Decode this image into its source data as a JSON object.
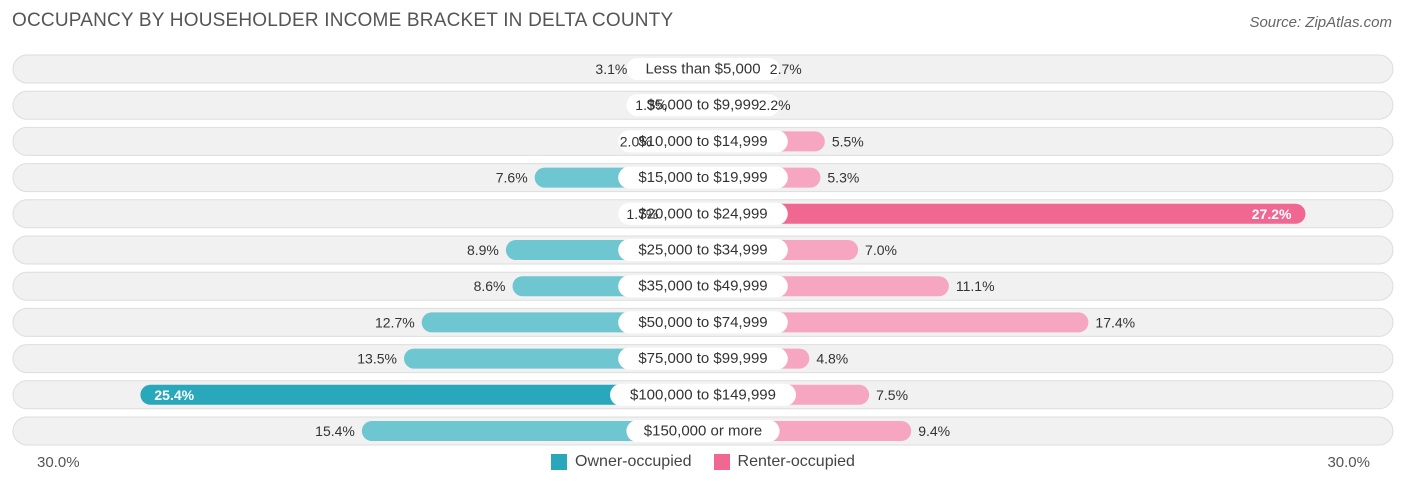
{
  "header": {
    "title": "OCCUPANCY BY HOUSEHOLDER INCOME BRACKET IN DELTA COUNTY",
    "source": "Source: ZipAtlas.com"
  },
  "axis": {
    "left_label": "30.0%",
    "right_label": "30.0%"
  },
  "legend": {
    "owner_label": "Owner-occupied",
    "renter_label": "Renter-occupied"
  },
  "colors": {
    "owner": "#6ec6d1",
    "owner_strong": "#29a8bb",
    "renter": "#f7a6c1",
    "renter_strong": "#f06792",
    "row_bg": "#f1f1f1",
    "row_border": "#dddddd",
    "label_text": "#333333"
  },
  "chart_data": {
    "type": "bar",
    "orientation": "horizontal-diverging",
    "title": "OCCUPANCY BY HOUSEHOLDER INCOME BRACKET IN DELTA COUNTY",
    "categories": [
      "Less than $5,000",
      "$5,000 to $9,999",
      "$10,000 to $14,999",
      "$15,000 to $19,999",
      "$20,000 to $24,999",
      "$25,000 to $34,999",
      "$35,000 to $49,999",
      "$50,000 to $74,999",
      "$75,000 to $99,999",
      "$100,000 to $149,999",
      "$150,000 or more"
    ],
    "series": [
      {
        "name": "Owner-occupied",
        "values": [
          3.1,
          1.3,
          2.0,
          7.6,
          1.7,
          8.9,
          8.6,
          12.7,
          13.5,
          25.4,
          15.4
        ],
        "labels": [
          "3.1%",
          "1.3%",
          "2.0%",
          "7.6%",
          "1.7%",
          "8.9%",
          "8.6%",
          "12.7%",
          "13.5%",
          "25.4%",
          "15.4%"
        ]
      },
      {
        "name": "Renter-occupied",
        "values": [
          2.7,
          2.2,
          5.5,
          5.3,
          27.2,
          7.0,
          11.1,
          17.4,
          4.8,
          7.5,
          9.4
        ],
        "labels": [
          "2.7%",
          "2.2%",
          "5.5%",
          "5.3%",
          "27.2%",
          "7.0%",
          "11.1%",
          "17.4%",
          "4.8%",
          "7.5%",
          "9.4%"
        ]
      }
    ],
    "xlim": [
      -30,
      30
    ],
    "legend_position": "bottom-center"
  }
}
